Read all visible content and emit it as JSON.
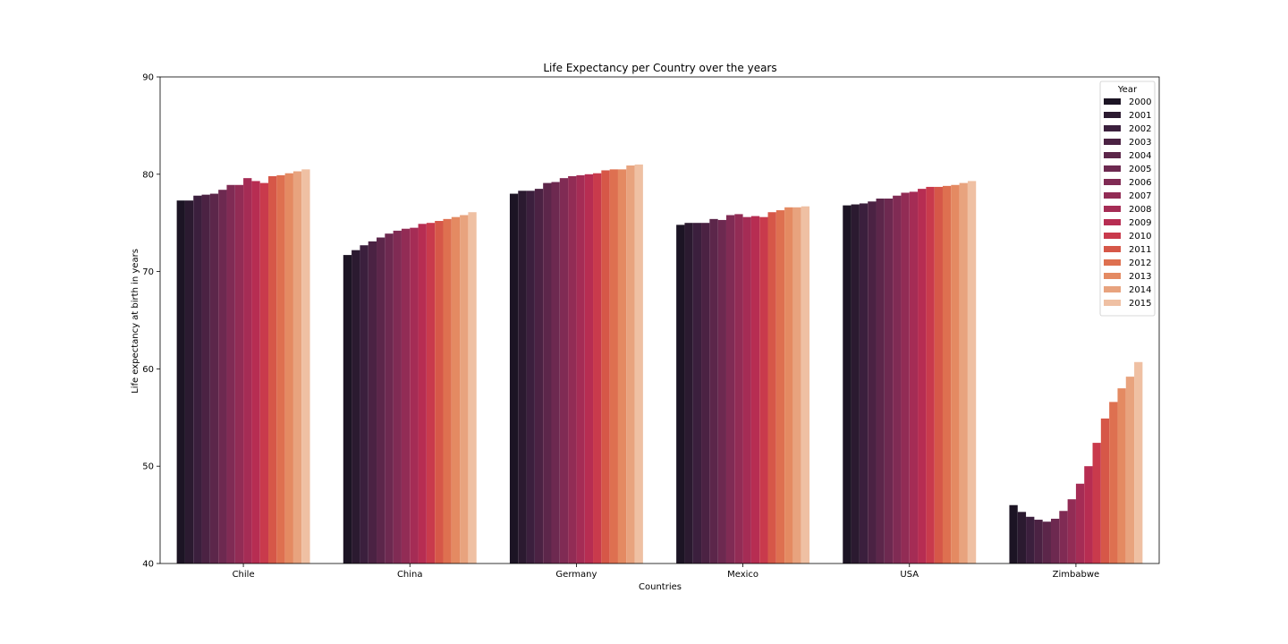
{
  "chart_data": {
    "type": "bar",
    "title": "Life Expectancy per Country over the years",
    "xlabel": "Countries",
    "ylabel": "Life expectancy at birth in years",
    "ylim": [
      40,
      90
    ],
    "yticks": [
      "40",
      "50",
      "60",
      "70",
      "80",
      "90"
    ],
    "grid": false,
    "legend": {
      "title": "Year",
      "placement": "top-right"
    },
    "categories": [
      "Chile",
      "China",
      "Germany",
      "Mexico",
      "USA",
      "Zimbabwe"
    ],
    "series": [
      {
        "name": "2000",
        "color": "#1c1424",
        "values": [
          77.3,
          71.7,
          78.0,
          74.8,
          76.8,
          46.0
        ]
      },
      {
        "name": "2001",
        "color": "#2b1a30",
        "values": [
          77.3,
          72.2,
          78.3,
          75.0,
          76.9,
          45.3
        ]
      },
      {
        "name": "2002",
        "color": "#3b1f3d",
        "values": [
          77.8,
          72.7,
          78.3,
          75.0,
          77.0,
          44.8
        ]
      },
      {
        "name": "2003",
        "color": "#4b2243",
        "values": [
          77.9,
          73.1,
          78.5,
          75.0,
          77.2,
          44.5
        ]
      },
      {
        "name": "2004",
        "color": "#5c264a",
        "values": [
          78.0,
          73.5,
          79.1,
          75.4,
          77.5,
          44.3
        ]
      },
      {
        "name": "2005",
        "color": "#6d2950",
        "values": [
          78.4,
          73.9,
          79.2,
          75.3,
          77.5,
          44.6
        ]
      },
      {
        "name": "2006",
        "color": "#802b54",
        "values": [
          78.9,
          74.2,
          79.6,
          75.8,
          77.8,
          45.4
        ]
      },
      {
        "name": "2007",
        "color": "#922c55",
        "values": [
          78.9,
          74.4,
          79.8,
          75.9,
          78.1,
          46.6
        ]
      },
      {
        "name": "2008",
        "color": "#a52c55",
        "values": [
          79.6,
          74.5,
          79.9,
          75.6,
          78.2,
          48.2
        ]
      },
      {
        "name": "2009",
        "color": "#b72d52",
        "values": [
          79.3,
          74.9,
          80.0,
          75.7,
          78.5,
          50.0
        ]
      },
      {
        "name": "2010",
        "color": "#c93a4c",
        "values": [
          79.1,
          75.0,
          80.1,
          75.6,
          78.7,
          52.4
        ]
      },
      {
        "name": "2011",
        "color": "#d65748",
        "values": [
          79.8,
          75.2,
          80.4,
          76.1,
          78.7,
          54.9
        ]
      },
      {
        "name": "2012",
        "color": "#de7050",
        "values": [
          79.9,
          75.4,
          80.5,
          76.3,
          78.8,
          56.6
        ]
      },
      {
        "name": "2013",
        "color": "#e48a62",
        "values": [
          80.1,
          75.6,
          80.5,
          76.6,
          78.9,
          58.0
        ]
      },
      {
        "name": "2014",
        "color": "#e8a37e",
        "values": [
          80.3,
          75.8,
          80.9,
          76.6,
          79.1,
          59.2
        ]
      },
      {
        "name": "2015",
        "color": "#efc0a3",
        "values": [
          80.5,
          76.1,
          81.0,
          76.7,
          79.3,
          60.7
        ]
      }
    ]
  }
}
